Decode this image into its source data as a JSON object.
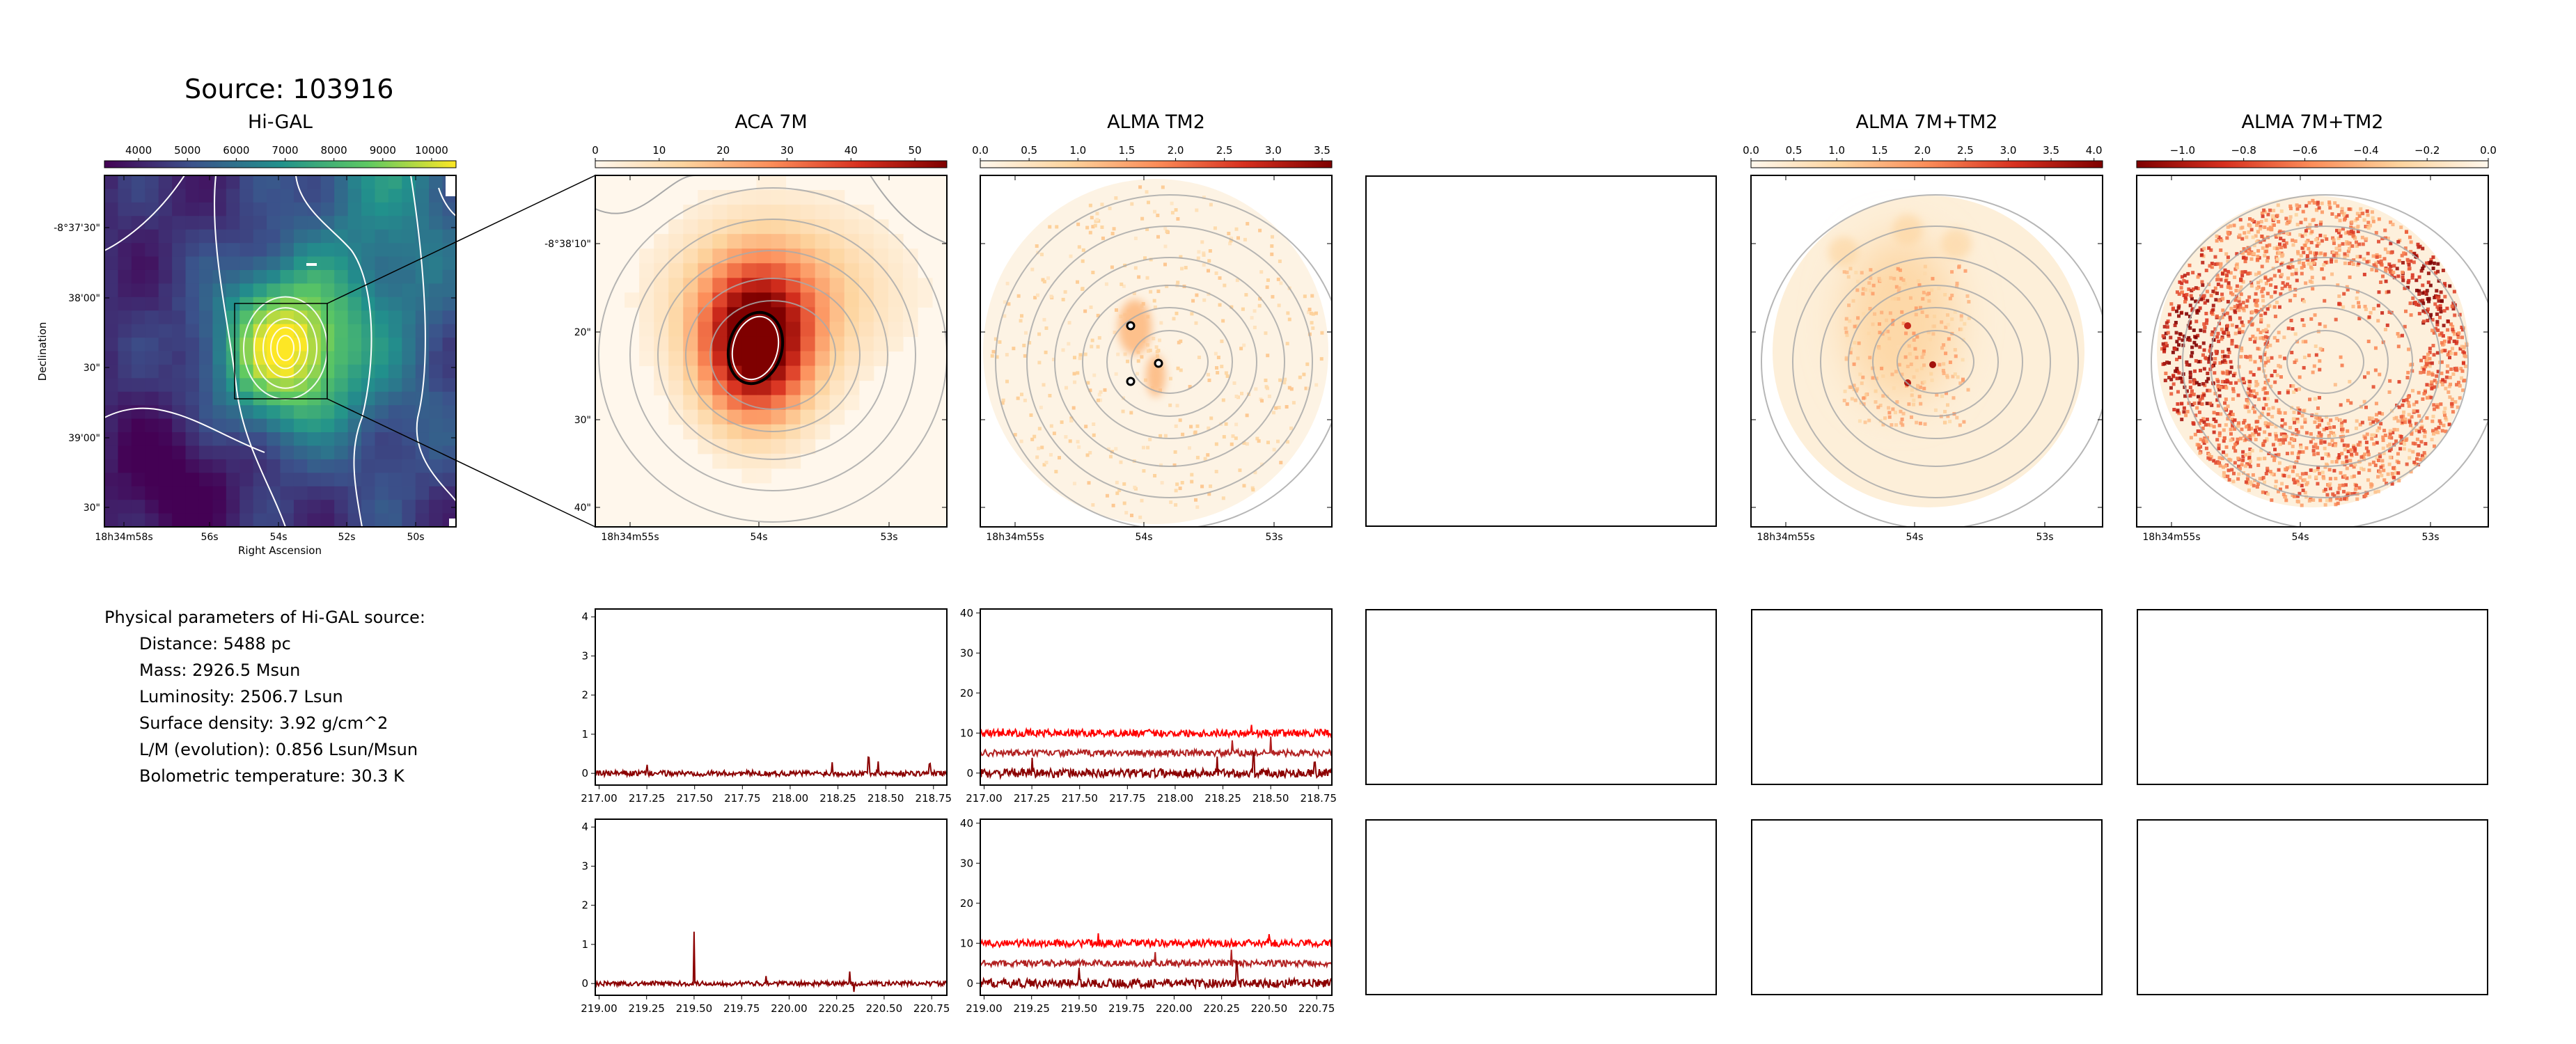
{
  "source_title": "Source: 103916",
  "params": {
    "heading": "Physical parameters of Hi-GAL source:",
    "lines": [
      "Distance: 5488 pc",
      "Mass: 2926.5 Msun",
      "Luminosity: 2506.7 Lsun",
      "Surface density: 3.92 g/cm^2",
      "L/M (evolution): 0.856 Lsun/Msun",
      "Bolometric temperature: 30.3 K"
    ]
  },
  "colors": {
    "viridis": [
      "#440154",
      "#3b528b",
      "#21918c",
      "#5ec962",
      "#fde725"
    ],
    "orrd": [
      "#fff7ec",
      "#fdd49e",
      "#fc8d59",
      "#d7301f",
      "#7f0000"
    ],
    "orrd_rev": [
      "#7f0000",
      "#d7301f",
      "#fc8d59",
      "#fdd49e",
      "#fff7ec"
    ],
    "spectrum_dark": "#8b0000",
    "spectrum_mid": "#b22222",
    "spectrum_bright": "#ff0000",
    "contour": "#a9a9a9"
  },
  "chart_data": [
    {
      "type": "heatmap",
      "title": "Hi-GAL",
      "colorbar_ticks": [
        "4000",
        "5000",
        "6000",
        "7000",
        "8000",
        "9000",
        "10000"
      ],
      "colorbar_range": [
        3300,
        10500
      ],
      "colormap": "viridis",
      "xlabel": "Right Ascension",
      "ylabel": "Declination",
      "xticks": [
        "18h34m58s",
        "56s",
        "54s",
        "52s",
        "50s"
      ],
      "yticks": [
        "-8°37'30\"",
        "38'00\"",
        "30\"",
        "39'00\"",
        "30\""
      ]
    },
    {
      "type": "heatmap",
      "title": "ACA 7M",
      "colorbar_ticks": [
        "0",
        "10",
        "20",
        "30",
        "40",
        "50"
      ],
      "colorbar_range": [
        0,
        55
      ],
      "colormap": "OrRd",
      "xticks": [
        "18h34m55s",
        "54s",
        "53s"
      ],
      "yticks": [
        "-8°38'10\"",
        "20\"",
        "30\"",
        "40\""
      ]
    },
    {
      "type": "heatmap",
      "title": "ALMA TM2",
      "colorbar_ticks": [
        "0.0",
        "0.5",
        "1.0",
        "1.5",
        "2.0",
        "2.5",
        "3.0",
        "3.5"
      ],
      "colorbar_range": [
        0,
        3.6
      ],
      "colormap": "OrRd",
      "xticks": [
        "18h34m55s",
        "54s",
        "53s"
      ]
    },
    {
      "type": "heatmap",
      "title": "ALMA 7M+TM2",
      "colorbar_ticks": [
        "0.0",
        "0.5",
        "1.0",
        "1.5",
        "2.0",
        "2.5",
        "3.0",
        "3.5",
        "4.0"
      ],
      "colorbar_range": [
        0,
        4.1
      ],
      "colormap": "OrRd",
      "xticks": [
        "18h34m55s",
        "54s",
        "53s"
      ]
    },
    {
      "type": "heatmap",
      "title": "ALMA 7M+TM2",
      "colorbar_ticks": [
        "−1.0",
        "−0.8",
        "−0.6",
        "−0.4",
        "−0.2",
        "0.0"
      ],
      "colorbar_range": [
        -1.15,
        0
      ],
      "colormap": "OrRd_r",
      "xticks": [
        "18h34m55s",
        "54s",
        "53s"
      ]
    },
    {
      "type": "line",
      "xticks": [
        "217.00",
        "217.25",
        "217.50",
        "217.75",
        "218.00",
        "218.25",
        "218.50",
        "218.75"
      ],
      "xlim": [
        216.98,
        218.82
      ],
      "yticks": [
        "0",
        "1",
        "2",
        "3",
        "4"
      ],
      "ylim": [
        -0.3,
        4.2
      ],
      "series": [
        {
          "baseline": 0,
          "noise": 0.07,
          "spikes": [
            [
              217.25,
              0.22
            ],
            [
              218.22,
              0.28
            ],
            [
              218.41,
              0.45
            ],
            [
              218.46,
              0.3
            ],
            [
              218.73,
              0.25
            ]
          ]
        }
      ]
    },
    {
      "type": "line",
      "xticks": [
        "217.00",
        "217.25",
        "217.50",
        "217.75",
        "218.00",
        "218.25",
        "218.50",
        "218.75"
      ],
      "xlim": [
        216.98,
        218.82
      ],
      "yticks": [
        "0",
        "10",
        "20",
        "30",
        "40"
      ],
      "ylim": [
        -3,
        41
      ],
      "series": [
        {
          "baseline": 10,
          "noise": 0.9,
          "spikes": [
            [
              217.1,
              2.0
            ],
            [
              218.4,
              2.5
            ]
          ]
        },
        {
          "baseline": 5,
          "noise": 0.8,
          "spikes": [
            [
              218.3,
              3.0
            ],
            [
              218.5,
              4.0
            ]
          ]
        },
        {
          "baseline": 0,
          "noise": 1.1,
          "spikes": [
            [
              217.25,
              3.0
            ],
            [
              218.22,
              3.5
            ],
            [
              218.41,
              5.0
            ],
            [
              218.73,
              3.0
            ]
          ]
        }
      ]
    },
    {
      "type": "line",
      "xticks": [
        "219.00",
        "219.25",
        "219.50",
        "219.75",
        "220.00",
        "220.25",
        "220.50",
        "220.75"
      ],
      "xlim": [
        218.98,
        220.83
      ],
      "yticks": [
        "0",
        "1",
        "2",
        "3",
        "4"
      ],
      "ylim": [
        -0.3,
        4.2
      ],
      "series": [
        {
          "baseline": 0,
          "noise": 0.06,
          "spikes": [
            [
              219.5,
              1.35
            ],
            [
              219.88,
              0.25
            ],
            [
              220.32,
              0.3
            ],
            [
              220.34,
              -0.25
            ]
          ]
        }
      ]
    },
    {
      "type": "line",
      "xticks": [
        "219.00",
        "219.25",
        "219.50",
        "219.75",
        "220.00",
        "220.25",
        "220.50",
        "220.75"
      ],
      "xlim": [
        218.98,
        220.83
      ],
      "yticks": [
        "0",
        "10",
        "20",
        "30",
        "40"
      ],
      "ylim": [
        -3,
        41
      ],
      "series": [
        {
          "baseline": 10,
          "noise": 0.9,
          "spikes": [
            [
              219.6,
              2.0
            ],
            [
              220.5,
              2.0
            ]
          ]
        },
        {
          "baseline": 5,
          "noise": 0.8,
          "spikes": [
            [
              219.9,
              3.0
            ],
            [
              220.3,
              3.5
            ]
          ]
        },
        {
          "baseline": 0,
          "noise": 1.1,
          "spikes": [
            [
              219.5,
              4.0
            ],
            [
              220.33,
              5.0
            ]
          ]
        }
      ]
    }
  ]
}
